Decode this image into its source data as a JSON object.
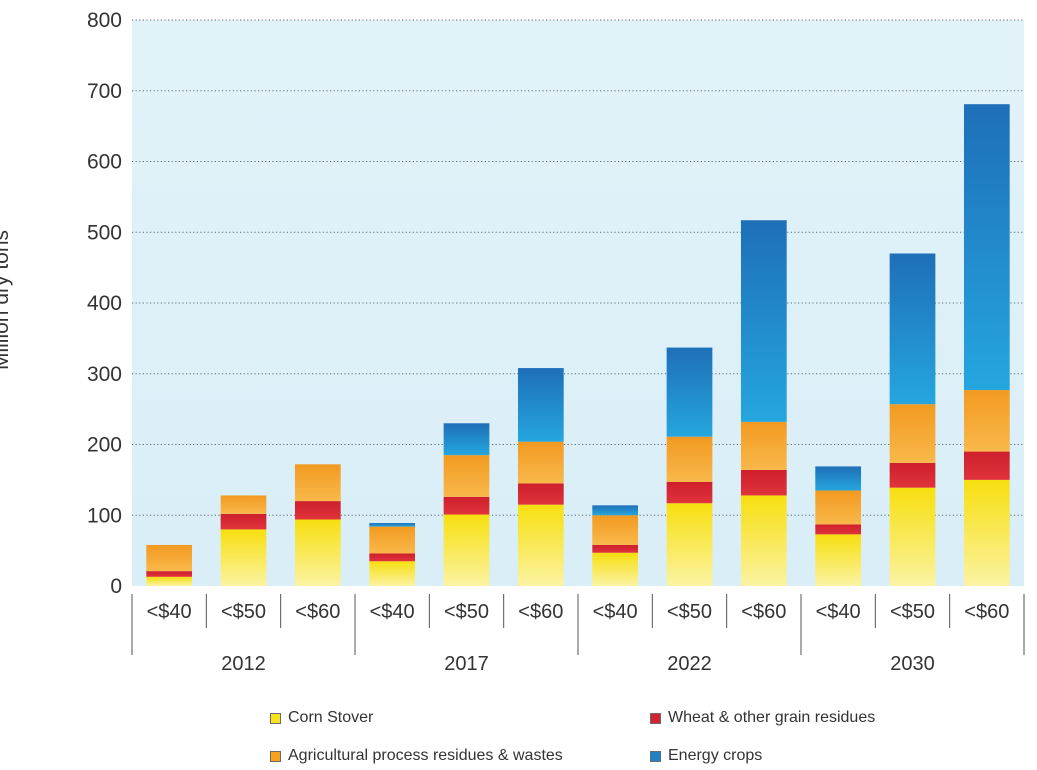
{
  "chart_data": {
    "type": "bar",
    "stacked": true,
    "ylabel": "Million dry tons",
    "ylim": [
      0,
      800
    ],
    "yticks": [
      0,
      100,
      200,
      300,
      400,
      500,
      600,
      700,
      800
    ],
    "grid": true,
    "legend_position": "bottom",
    "groups": [
      {
        "label": "2012",
        "categories": [
          "<$40",
          "<$50",
          "<$60"
        ]
      },
      {
        "label": "2017",
        "categories": [
          "<$40",
          "<$50",
          "<$60"
        ]
      },
      {
        "label": "2022",
        "categories": [
          "<$40",
          "<$50",
          "<$60"
        ]
      },
      {
        "label": "2030",
        "categories": [
          "<$40",
          "<$50",
          "<$60"
        ]
      }
    ],
    "series": [
      {
        "name": "Corn Stover",
        "color": "#f7e21b",
        "values": [
          13,
          80,
          94,
          35,
          101,
          115,
          47,
          117,
          128,
          73,
          139,
          150
        ]
      },
      {
        "name": "Wheat & other grain residues",
        "color": "#d42330",
        "values": [
          8,
          22,
          26,
          11,
          25,
          30,
          11,
          30,
          36,
          14,
          35,
          40
        ]
      },
      {
        "name": "Agricultural process residues & wastes",
        "color": "#f5a21f",
        "values": [
          37,
          26,
          52,
          38,
          59,
          59,
          42,
          64,
          68,
          48,
          83,
          87
        ]
      },
      {
        "name": "Energy crops",
        "color": "#1f82c7",
        "values": [
          0,
          0,
          0,
          5,
          45,
          104,
          14,
          126,
          285,
          34,
          213,
          404
        ]
      }
    ]
  }
}
